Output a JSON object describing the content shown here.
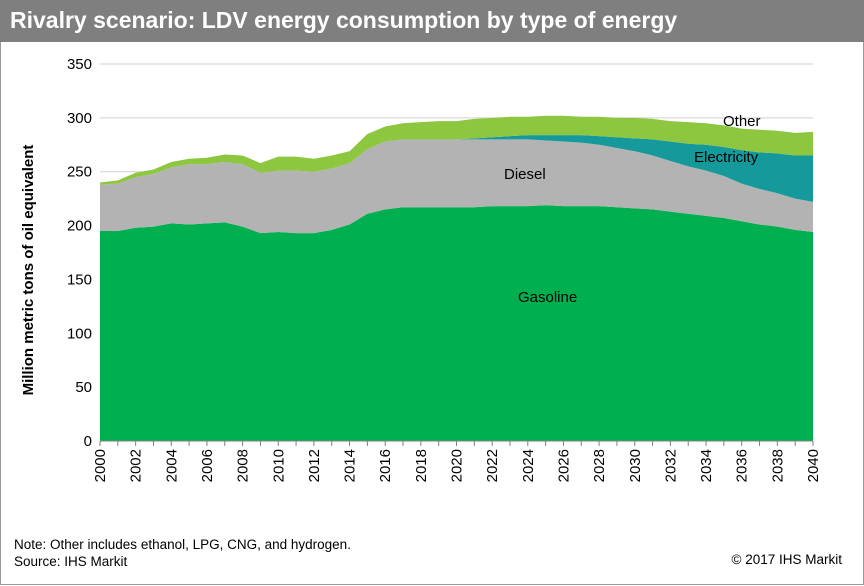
{
  "title": "Rivalry scenario: LDV energy consumption by type of energy",
  "note": "Note: Other includes ethanol, LPG, CNG, and hydrogen.",
  "source": "Source: IHS Markit",
  "copyright": "© 2017 IHS Markit",
  "chart_data": {
    "type": "area",
    "stacked": true,
    "title": "Rivalry scenario: LDV energy consumption by type of energy",
    "xlabel": "",
    "ylabel": "Million metric tons of oil equivalent",
    "ylim": [
      0,
      350
    ],
    "yticks": [
      "0",
      "50",
      "100",
      "150",
      "200",
      "250",
      "300",
      "350"
    ],
    "xticks": [
      "2000",
      "2002",
      "2004",
      "2006",
      "2008",
      "2010",
      "2012",
      "2014",
      "2016",
      "2018",
      "2020",
      "2022",
      "2024",
      "2026",
      "2028",
      "2030",
      "2032",
      "2034",
      "2036",
      "2038",
      "2040"
    ],
    "x": [
      2000,
      2001,
      2002,
      2003,
      2004,
      2005,
      2006,
      2007,
      2008,
      2009,
      2010,
      2011,
      2012,
      2013,
      2014,
      2015,
      2016,
      2017,
      2018,
      2019,
      2020,
      2021,
      2022,
      2023,
      2024,
      2025,
      2026,
      2027,
      2028,
      2029,
      2030,
      2031,
      2032,
      2033,
      2034,
      2035,
      2036,
      2037,
      2038,
      2039,
      2040
    ],
    "grid": "horizontal",
    "series": [
      {
        "name": "Gasoline",
        "color": "#00b050",
        "values": [
          195,
          195,
          198,
          199,
          202,
          201,
          202,
          203,
          199,
          193,
          194,
          193,
          193,
          196,
          201,
          211,
          215,
          217,
          217,
          217,
          217,
          217,
          218,
          218,
          218,
          219,
          218,
          218,
          218,
          217,
          216,
          215,
          213,
          211,
          209,
          207,
          204,
          201,
          199,
          196,
          194
        ]
      },
      {
        "name": "Diesel",
        "color": "#b3b3b3",
        "values": [
          43,
          44,
          47,
          49,
          52,
          56,
          55,
          56,
          58,
          56,
          57,
          58,
          57,
          57,
          57,
          60,
          63,
          63,
          63,
          63,
          63,
          63,
          62,
          62,
          62,
          60,
          60,
          59,
          57,
          55,
          53,
          50,
          47,
          44,
          42,
          39,
          35,
          33,
          31,
          29,
          28
        ]
      },
      {
        "name": "Electricity",
        "color": "#16999a",
        "values": [
          0,
          0,
          0,
          0,
          0,
          0,
          0,
          0,
          0,
          0,
          0,
          0,
          0,
          0,
          0,
          0,
          0,
          0,
          0,
          0,
          0,
          1,
          2,
          3,
          4,
          5,
          6,
          7,
          8,
          10,
          12,
          15,
          18,
          21,
          24,
          27,
          31,
          34,
          37,
          40,
          43
        ]
      },
      {
        "name": "Other",
        "color": "#8dc63f",
        "values": [
          2,
          3,
          4,
          4,
          5,
          5,
          6,
          7,
          8,
          9,
          13,
          13,
          12,
          12,
          11,
          14,
          14,
          15,
          16,
          17,
          17,
          18,
          18,
          18,
          17,
          18,
          18,
          17,
          18,
          18,
          19,
          19,
          19,
          20,
          20,
          20,
          20,
          21,
          21,
          21,
          22
        ]
      }
    ],
    "labels": {
      "Gasoline": "Gasoline",
      "Diesel": "Diesel",
      "Electricity": "Electricity",
      "Other": "Other"
    }
  }
}
